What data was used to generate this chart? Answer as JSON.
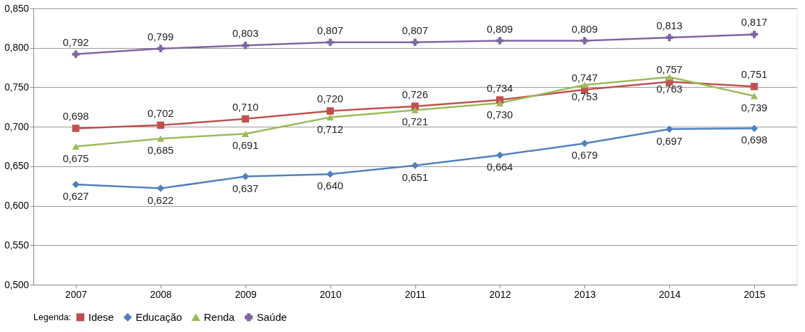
{
  "chart_data": {
    "type": "line",
    "categories": [
      "2007",
      "2008",
      "2009",
      "2010",
      "2011",
      "2012",
      "2013",
      "2014",
      "2015"
    ],
    "ylim": [
      0.5,
      0.85
    ],
    "yticks": [
      {
        "value": 0.5,
        "label": "0,500"
      },
      {
        "value": 0.55,
        "label": "0,550"
      },
      {
        "value": 0.6,
        "label": "0,600"
      },
      {
        "value": 0.65,
        "label": "0,650"
      },
      {
        "value": 0.7,
        "label": "0,700"
      },
      {
        "value": 0.75,
        "label": "0,750"
      },
      {
        "value": 0.8,
        "label": "0,800"
      },
      {
        "value": 0.85,
        "label": "0,850"
      }
    ],
    "grid": "y",
    "legend": "bottom",
    "legend_title": "Legenda:",
    "line_style": "solid",
    "series": [
      {
        "name": "Idese",
        "color": "#c0504d",
        "marker": "square",
        "values": [
          0.698,
          0.702,
          0.71,
          0.72,
          0.726,
          0.734,
          0.747,
          0.757,
          0.751
        ],
        "value_labels": [
          "0,698",
          "0,702",
          "0,710",
          "0,720",
          "0,726",
          "0,734",
          "0,747",
          "0,757",
          "0,751"
        ]
      },
      {
        "name": "Educação",
        "color": "#4f81bd",
        "marker": "diamond",
        "values": [
          0.627,
          0.622,
          0.637,
          0.64,
          0.651,
          0.664,
          0.679,
          0.697,
          0.698
        ],
        "value_labels": [
          "0,627",
          "0,622",
          "0,637",
          "0,640",
          "0,651",
          "0,664",
          "0,679",
          "0,697",
          "0,698"
        ]
      },
      {
        "name": "Renda",
        "color": "#9bbb59",
        "marker": "triangle",
        "values": [
          0.675,
          0.685,
          0.691,
          0.712,
          0.721,
          0.73,
          0.753,
          0.763,
          0.739
        ],
        "value_labels": [
          "0,675",
          "0,685",
          "0,691",
          "0,712",
          "0,721",
          "0,730",
          "0,753",
          "0,763",
          "0,739"
        ]
      },
      {
        "name": "Saúde",
        "color": "#8064a2",
        "marker": "cross",
        "values": [
          0.792,
          0.799,
          0.803,
          0.807,
          0.807,
          0.809,
          0.809,
          0.813,
          0.817
        ],
        "value_labels": [
          "0,792",
          "0,799",
          "0,803",
          "0,807",
          "0,807",
          "0,809",
          "0,809",
          "0,813",
          "0,817"
        ]
      }
    ]
  }
}
